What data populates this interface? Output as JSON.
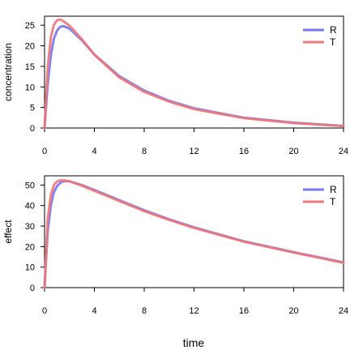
{
  "figure": {
    "xlabel": "time"
  },
  "chart_data": [
    {
      "type": "line",
      "ylabel": "concentration",
      "xlim": [
        0,
        24
      ],
      "ylim": [
        0,
        27.2
      ],
      "xticks": [
        0,
        4,
        8,
        12,
        16,
        20,
        24
      ],
      "yticks": [
        0,
        5,
        10,
        15,
        20,
        25
      ],
      "legend_position": "top-right",
      "grid": false,
      "series": [
        {
          "name": "R",
          "color": "#7777ee",
          "x": [
            0,
            0.25,
            0.5,
            0.75,
            1,
            1.25,
            1.5,
            2,
            3,
            4,
            6,
            8,
            10,
            12,
            16,
            20,
            24
          ],
          "y": [
            0,
            10.5,
            17.6,
            21.7,
            23.7,
            24.6,
            24.8,
            24.2,
            21.3,
            17.9,
            12.6,
            9.1,
            6.6,
            4.8,
            2.5,
            1.3,
            0.5
          ]
        },
        {
          "name": "T",
          "color": "#ee7777",
          "x": [
            0,
            0.25,
            0.5,
            0.75,
            1,
            1.25,
            1.5,
            2,
            3,
            4,
            6,
            8,
            10,
            12,
            16,
            20,
            24
          ],
          "y": [
            0,
            14.5,
            22.0,
            25.1,
            26.2,
            26.4,
            26.0,
            24.9,
            21.6,
            17.8,
            12.3,
            8.8,
            6.4,
            4.6,
            2.4,
            1.2,
            0.5
          ]
        }
      ]
    },
    {
      "type": "line",
      "ylabel": "effect",
      "xlim": [
        0,
        24
      ],
      "ylim": [
        0,
        54.5
      ],
      "xticks": [
        0,
        4,
        8,
        12,
        16,
        20,
        24
      ],
      "yticks": [
        0,
        10,
        20,
        30,
        40,
        50
      ],
      "legend_position": "top-right",
      "grid": false,
      "series": [
        {
          "name": "R",
          "color": "#7777ee",
          "x": [
            0,
            0.25,
            0.5,
            0.75,
            1,
            1.25,
            1.5,
            2,
            3,
            4,
            6,
            8,
            10,
            12,
            16,
            20,
            24
          ],
          "y": [
            0,
            27,
            40,
            46.5,
            49.5,
            51,
            51.8,
            51.8,
            50,
            47.6,
            42.6,
            37.7,
            33.3,
            29.4,
            22.6,
            17.3,
            12.3
          ]
        },
        {
          "name": "T",
          "color": "#ee7777",
          "x": [
            0,
            0.25,
            0.5,
            0.75,
            1,
            1.25,
            1.5,
            2,
            3,
            4,
            6,
            8,
            10,
            12,
            16,
            20,
            24
          ],
          "y": [
            0,
            33,
            45,
            50,
            51.7,
            52.3,
            52.3,
            51.8,
            49.7,
            47.2,
            42.2,
            37.3,
            33.0,
            29.1,
            22.4,
            17.1,
            12.1
          ]
        }
      ]
    }
  ]
}
